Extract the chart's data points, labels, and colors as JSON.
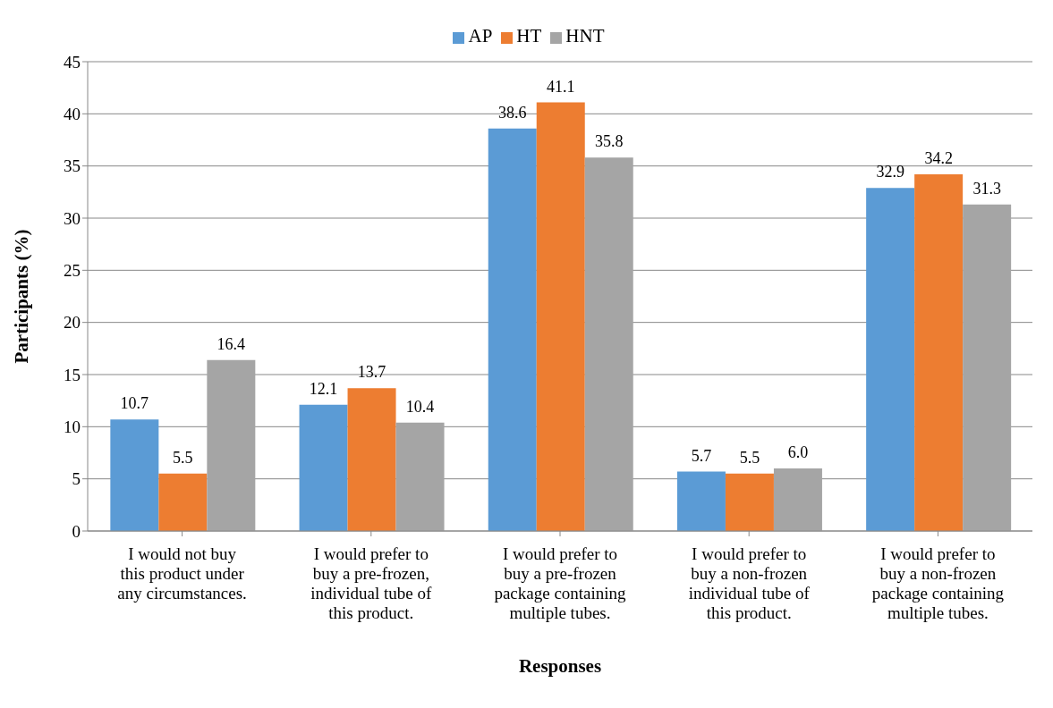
{
  "chart_data": {
    "type": "bar",
    "xlabel": "Responses",
    "ylabel": "Participants (%)",
    "categories": [
      "I would not buy this product under any circumstances.",
      "I would prefer to buy a pre-frozen, individual tube of this product.",
      "I would prefer to buy a pre-frozen package containing multiple tubes.",
      "I would prefer to buy a non-frozen individual tube of this product.",
      "I would prefer to buy a non-frozen package containing multiple tubes."
    ],
    "series": [
      {
        "name": "AP",
        "color": "#5b9bd5",
        "values": [
          10.7,
          12.1,
          38.6,
          5.7,
          32.9
        ],
        "value_labels": [
          "10.7",
          "12.1",
          "38.6",
          "5.7",
          "32.9"
        ]
      },
      {
        "name": "HT",
        "color": "#ed7d31",
        "values": [
          5.5,
          13.7,
          41.1,
          5.5,
          34.2
        ],
        "value_labels": [
          "5.5",
          "13.7",
          "41.1",
          "5.5",
          "34.2"
        ]
      },
      {
        "name": "HNT",
        "color": "#a5a5a5",
        "values": [
          16.4,
          10.4,
          35.8,
          6.0,
          31.3
        ],
        "value_labels": [
          "16.4",
          "10.4",
          "35.8",
          "6.0",
          "31.3"
        ]
      }
    ],
    "ylim": [
      0,
      45
    ],
    "yticks": [
      0,
      5,
      10,
      15,
      20,
      25,
      30,
      35,
      40,
      45
    ],
    "grid": "y",
    "legend": "top"
  }
}
